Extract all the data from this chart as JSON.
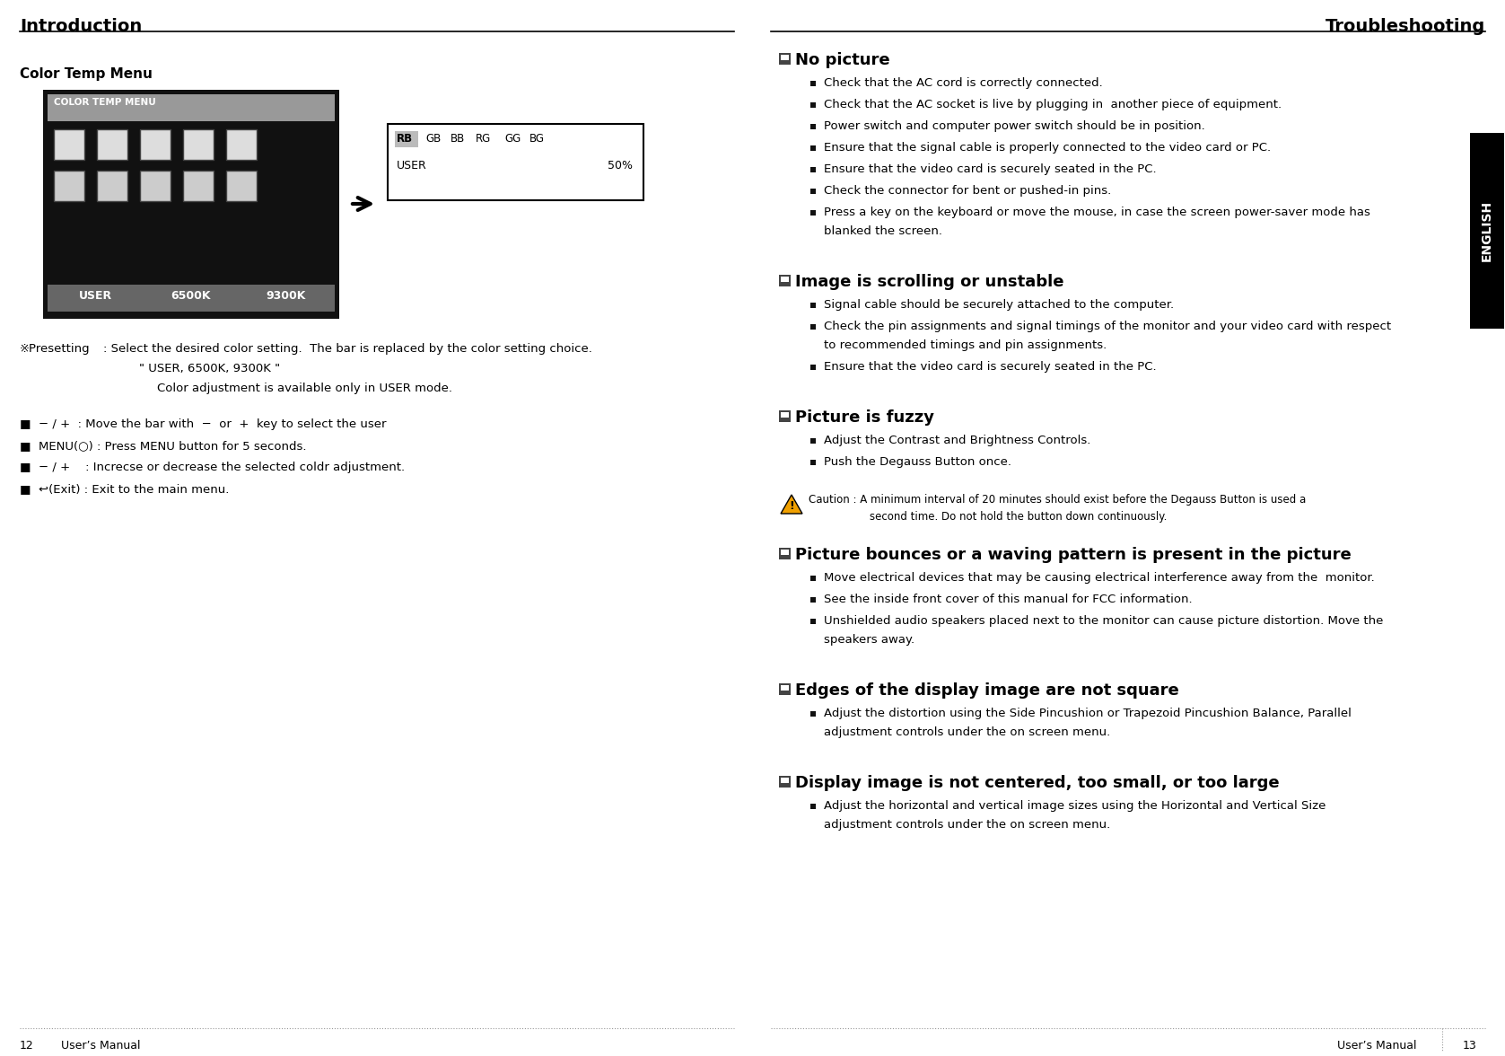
{
  "bg_color": "#ffffff",
  "left_title": "Introduction",
  "right_title": "Troubleshooting",
  "page_left": "12",
  "page_right": "13",
  "page_label": "User’s Manual",
  "english_tab_text": "ENGLISH",
  "english_tab_bg": "#000000",
  "english_tab_color": "#ffffff",
  "left_section_title": "Color Temp Menu",
  "menu_box_bg": "#111111",
  "menu_header_bg": "#999999",
  "menu_header_text": "COLOR TEMP MENU",
  "menu_bottom_labels": [
    "USER",
    "6500K",
    "9300K"
  ],
  "menu_bottom_bg": "#666666",
  "submenu_labels": [
    "RB",
    "GB",
    "BB",
    "RG",
    "GG",
    "BG"
  ],
  "submenu_user": "USER",
  "submenu_value": "50%",
  "caution_text_line1": "Caution : A minimum interval of 20 minutes should exist before the Degauss Button is used a",
  "caution_text_line2": "second time. Do not hold the button down continuously.",
  "right_sections": [
    {
      "title": "No picture",
      "bullets": [
        "Check that the AC cord is correctly connected.",
        "Check that the AC socket is live by plugging in  another piece of equipment.",
        "Power switch and computer power switch should be in position.",
        "Ensure that the signal cable is properly connected to the video card or PC.",
        "Ensure that the video card is securely seated in the PC.",
        "Check the connector for bent or pushed-in pins.",
        [
          "Press a key on the keyboard or move the mouse, in case the screen power-saver mode has",
          "blanked the screen."
        ]
      ]
    },
    {
      "title": "Image is scrolling or unstable",
      "bullets": [
        "Signal cable should be securely attached to the computer.",
        [
          "Check the pin assignments and signal timings of the monitor and your video card with respect",
          "to recommended timings and pin assignments."
        ],
        "Ensure that the video card is securely seated in the PC."
      ]
    },
    {
      "title": "Picture is fuzzy",
      "bullets": [
        "Adjust the Contrast and Brightness Controls.",
        "Push the Degauss Button once."
      ],
      "has_caution": true
    },
    {
      "title": "Picture bounces or a waving pattern is present in the picture",
      "bullets": [
        "Move electrical devices that may be causing electrical interference away from the  monitor.",
        "See the inside front cover of this manual for FCC information.",
        [
          "Unshielded audio speakers placed next to the monitor can cause picture distortion. Move the",
          "speakers away."
        ]
      ]
    },
    {
      "title": "Edges of the display image are not square",
      "bullets": [
        [
          "Adjust the distortion using the Side Pincushion or Trapezoid Pincushion Balance, Parallel",
          "adjustment controls under the on screen menu."
        ]
      ]
    },
    {
      "title": "Display image is not centered, too small, or too large",
      "bullets": [
        [
          "Adjust the horizontal and vertical image sizes using the Horizontal and Vertical Size",
          "adjustment controls under the on screen menu."
        ]
      ]
    }
  ]
}
